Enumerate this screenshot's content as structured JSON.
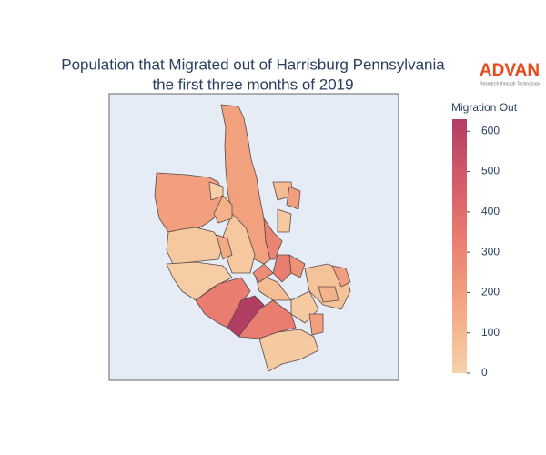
{
  "chart_data": {
    "type": "choropleth",
    "title": [
      "Population that Migrated out of Harrisburg Pennsylvania",
      "the first three months of 2019"
    ],
    "logo": "ADVAN",
    "logo_tagline": "Research through Technology",
    "colorbar_title": "Migration Out",
    "zlim": [
      0,
      630
    ],
    "colorbar_ticks": [
      0,
      100,
      200,
      300,
      400,
      500,
      600
    ],
    "colorscale": [
      "#f6d2a9",
      "#f5b78e",
      "#f19c7c",
      "#ea8171",
      "#dd686c",
      "#ca5268",
      "#b13f64"
    ],
    "values": [
      190,
      200,
      40,
      20,
      330,
      630,
      330,
      30,
      40,
      300,
      330,
      250,
      60,
      200,
      80,
      30,
      200,
      130,
      10,
      150,
      90,
      200,
      40,
      120,
      270
    ]
  }
}
